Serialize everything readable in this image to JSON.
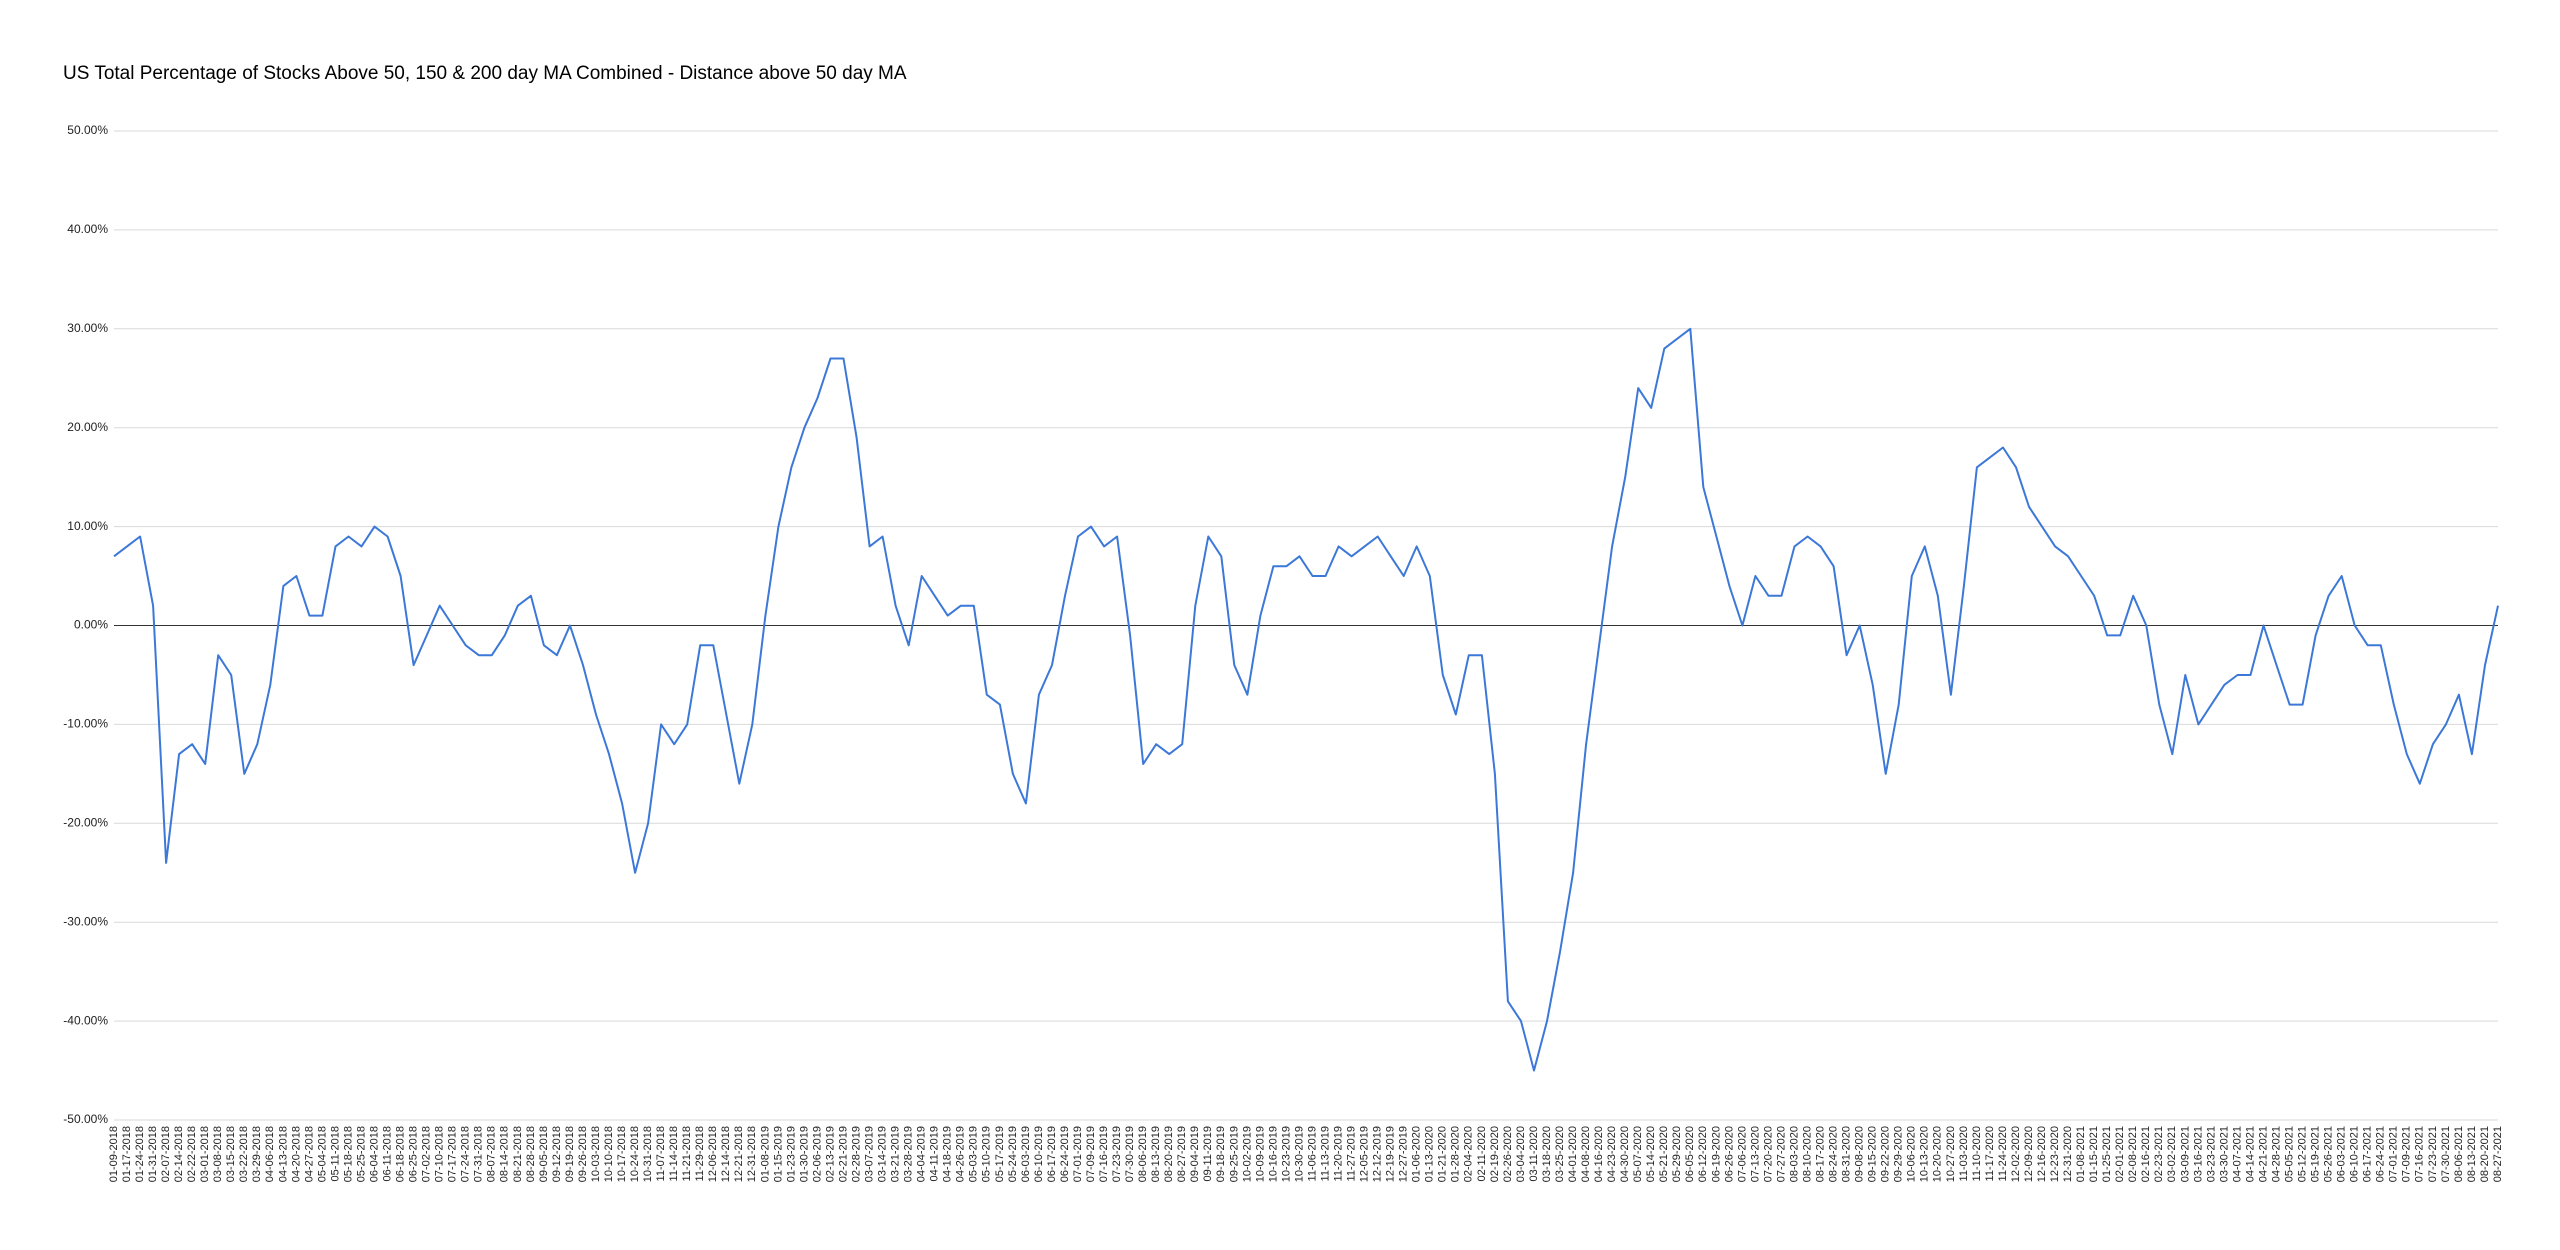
{
  "chart_data": {
    "type": "line",
    "title": "US Total Percentage of Stocks Above 50, 150 & 200 day MA Combined - Distance above 50 day MA",
    "categories": [
      "01-09-2018",
      "01-17-2018",
      "01-24-2018",
      "01-31-2018",
      "02-07-2018",
      "02-14-2018",
      "02-22-2018",
      "03-01-2018",
      "03-08-2018",
      "03-15-2018",
      "03-22-2018",
      "03-29-2018",
      "04-06-2018",
      "04-13-2018",
      "04-20-2018",
      "04-27-2018",
      "05-04-2018",
      "05-11-2018",
      "05-18-2018",
      "05-25-2018",
      "06-04-2018",
      "06-11-2018",
      "06-18-2018",
      "06-25-2018",
      "07-02-2018",
      "07-10-2018",
      "07-17-2018",
      "07-24-2018",
      "07-31-2018",
      "08-07-2018",
      "08-14-2018",
      "08-21-2018",
      "08-28-2018",
      "09-05-2018",
      "09-12-2018",
      "09-19-2018",
      "09-26-2018",
      "10-03-2018",
      "10-10-2018",
      "10-17-2018",
      "10-24-2018",
      "10-31-2018",
      "11-07-2018",
      "11-14-2018",
      "11-21-2018",
      "11-29-2018",
      "12-06-2018",
      "12-14-2018",
      "12-21-2018",
      "12-31-2018",
      "01-08-2019",
      "01-15-2019",
      "01-23-2019",
      "01-30-2019",
      "02-06-2019",
      "02-13-2019",
      "02-21-2019",
      "02-28-2019",
      "03-07-2019",
      "03-14-2019",
      "03-21-2019",
      "03-28-2019",
      "04-04-2019",
      "04-11-2019",
      "04-18-2019",
      "04-26-2019",
      "05-03-2019",
      "05-10-2019",
      "05-17-2019",
      "05-24-2019",
      "06-03-2019",
      "06-10-2019",
      "06-17-2019",
      "06-24-2019",
      "07-01-2019",
      "07-09-2019",
      "07-16-2019",
      "07-23-2019",
      "07-30-2019",
      "08-06-2019",
      "08-13-2019",
      "08-20-2019",
      "08-27-2019",
      "09-04-2019",
      "09-11-2019",
      "09-18-2019",
      "09-25-2019",
      "10-02-2019",
      "10-09-2019",
      "10-16-2019",
      "10-23-2019",
      "10-30-2019",
      "11-06-2019",
      "11-13-2019",
      "11-20-2019",
      "11-27-2019",
      "12-05-2019",
      "12-12-2019",
      "12-19-2019",
      "12-27-2019",
      "01-06-2020",
      "01-13-2020",
      "01-21-2020",
      "01-28-2020",
      "02-04-2020",
      "02-11-2020",
      "02-19-2020",
      "02-26-2020",
      "03-04-2020",
      "03-11-2020",
      "03-18-2020",
      "03-25-2020",
      "04-01-2020",
      "04-08-2020",
      "04-16-2020",
      "04-23-2020",
      "04-30-2020",
      "05-07-2020",
      "05-14-2020",
      "05-21-2020",
      "05-29-2020",
      "06-05-2020",
      "06-12-2020",
      "06-19-2020",
      "06-26-2020",
      "07-06-2020",
      "07-13-2020",
      "07-20-2020",
      "07-27-2020",
      "08-03-2020",
      "08-10-2020",
      "08-17-2020",
      "08-24-2020",
      "08-31-2020",
      "09-08-2020",
      "09-15-2020",
      "09-22-2020",
      "09-29-2020",
      "10-06-2020",
      "10-13-2020",
      "10-20-2020",
      "10-27-2020",
      "11-03-2020",
      "11-10-2020",
      "11-17-2020",
      "11-24-2020",
      "12-02-2020",
      "12-09-2020",
      "12-16-2020",
      "12-23-2020",
      "12-31-2020",
      "01-08-2021",
      "01-15-2021",
      "01-25-2021",
      "02-01-2021",
      "02-08-2021",
      "02-16-2021",
      "02-23-2021",
      "03-02-2021",
      "03-09-2021",
      "03-16-2021",
      "03-23-2021",
      "03-30-2021",
      "04-07-2021",
      "04-14-2021",
      "04-21-2021",
      "04-28-2021",
      "05-05-2021",
      "05-12-2021",
      "05-19-2021",
      "05-26-2021",
      "06-03-2021",
      "06-10-2021",
      "06-17-2021",
      "06-24-2021",
      "07-01-2021",
      "07-09-2021",
      "07-16-2021",
      "07-23-2021",
      "07-30-2021",
      "08-06-2021",
      "08-13-2021",
      "08-20-2021",
      "08-27-2021"
    ],
    "series": [
      {
        "name": "Distance above 50 day MA",
        "color": "#3c78d8",
        "values": [
          7,
          8,
          9,
          2,
          -24,
          -13,
          -12,
          -14,
          -3,
          -5,
          -15,
          -12,
          -6,
          4,
          5,
          1,
          1,
          8,
          9,
          8,
          10,
          9,
          5,
          -4,
          -1,
          2,
          0,
          -2,
          -3,
          -3,
          -1,
          2,
          3,
          -2,
          -3,
          0,
          -4,
          -9,
          -13,
          -18,
          -25,
          -20,
          -10,
          -12,
          -10,
          -2,
          -2,
          -9,
          -16,
          -10,
          1,
          10,
          16,
          20,
          23,
          27,
          27,
          19,
          8,
          9,
          2,
          -2,
          5,
          3,
          1,
          2,
          2,
          -7,
          -8,
          -15,
          -18,
          -7,
          -4,
          3,
          9,
          10,
          8,
          9,
          -1,
          -14,
          -12,
          -13,
          -12,
          2,
          9,
          7,
          -4,
          -7,
          1,
          6,
          6,
          7,
          5,
          5,
          8,
          7,
          8,
          9,
          7,
          5,
          8,
          5,
          -5,
          -9,
          -3,
          -3,
          -15,
          -38,
          -40,
          -45,
          -40,
          -33,
          -25,
          -12,
          -2,
          8,
          15,
          24,
          22,
          28,
          29,
          30,
          14,
          9,
          4,
          0,
          5,
          3,
          3,
          8,
          9,
          8,
          6,
          -3,
          0,
          -6,
          -15,
          -8,
          5,
          8,
          3,
          -7,
          4,
          16,
          17,
          18,
          16,
          12,
          10,
          8,
          7,
          5,
          3,
          -1,
          -1,
          3,
          0,
          -8,
          -13,
          -5,
          -10,
          -8,
          -6,
          -5,
          -5,
          0,
          -4,
          -8,
          -8,
          -1,
          3,
          5,
          0,
          -2,
          -2,
          -8,
          -13,
          -16,
          -12,
          -10,
          -7,
          -13,
          -4,
          2
        ]
      }
    ],
    "ylim": [
      -50,
      50
    ],
    "yticks": [
      {
        "value": -50,
        "label": "-50.00%"
      },
      {
        "value": -40,
        "label": "-40.00%"
      },
      {
        "value": -30,
        "label": "-30.00%"
      },
      {
        "value": -20,
        "label": "-20.00%"
      },
      {
        "value": -10,
        "label": "-10.00%"
      },
      {
        "value": 0,
        "label": "0.00%"
      },
      {
        "value": 10,
        "label": "10.00%"
      },
      {
        "value": 20,
        "label": "20.00%"
      },
      {
        "value": 30,
        "label": "30.00%"
      },
      {
        "value": 40,
        "label": "40.00%"
      },
      {
        "value": 50,
        "label": "50.00%"
      }
    ],
    "grid": true
  }
}
